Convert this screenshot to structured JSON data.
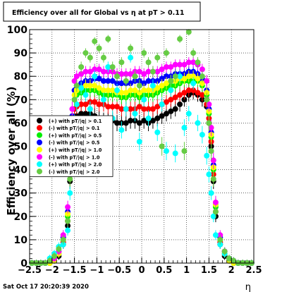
{
  "canvas": {
    "title": "Efficiency over all for Global vs   η at pT > 0.11",
    "timestamp": "Sat Oct 17 20:20:39 2020"
  },
  "chart_data": {
    "type": "scatter",
    "title": "Efficiency over all for Global vs   η at pT > 0.11",
    "xlabel": "η",
    "ylabel": "Efficiency over all (%)",
    "xlim": [
      -2.5,
      2.5
    ],
    "ylim": [
      0,
      100
    ],
    "x_ticks": [
      -2.5,
      -2,
      -1.5,
      -1,
      -0.5,
      0,
      0.5,
      1,
      1.5,
      2,
      2.5
    ],
    "x_tick_labels": [
      "−2.5",
      "−2",
      "−1.5",
      "−1",
      "−0.5",
      "0",
      "0.5",
      "1",
      "1.5",
      "2",
      "2.5"
    ],
    "y_ticks": [
      0,
      10,
      20,
      30,
      40,
      50,
      60,
      70,
      80,
      90,
      100
    ],
    "grid": true,
    "legend_position": "left-middle",
    "x": [
      -2.45,
      -2.35,
      -2.25,
      -2.15,
      -2.05,
      -1.95,
      -1.85,
      -1.75,
      -1.65,
      -1.6,
      -1.55,
      -1.5,
      -1.45,
      -1.35,
      -1.25,
      -1.15,
      -1.05,
      -0.95,
      -0.85,
      -0.75,
      -0.65,
      -0.55,
      -0.45,
      -0.35,
      -0.25,
      -0.15,
      -0.05,
      0.05,
      0.15,
      0.25,
      0.35,
      0.45,
      0.55,
      0.65,
      0.75,
      0.85,
      0.95,
      1.05,
      1.15,
      1.25,
      1.35,
      1.45,
      1.5,
      1.55,
      1.6,
      1.65,
      1.75,
      1.85,
      1.95,
      2.05,
      2.15,
      2.25,
      2.35,
      2.45
    ],
    "series": [
      {
        "name": "(+) with pT/|q| > 0.1",
        "color": "#000000",
        "values": [
          0,
          0,
          0,
          0,
          0,
          1,
          3,
          8,
          16,
          35,
          55,
          62,
          63,
          64,
          64,
          64,
          63,
          62,
          61,
          61,
          61,
          60,
          60,
          60,
          61,
          61,
          60,
          61,
          60,
          61,
          62,
          63,
          64,
          65,
          66,
          68,
          70,
          72,
          73,
          72,
          70,
          67,
          60,
          50,
          35,
          20,
          8,
          3,
          1,
          0,
          0,
          0,
          0,
          0
        ]
      },
      {
        "name": "(-) with pT/|q| > 0.1",
        "color": "#ff0000",
        "values": [
          0,
          0,
          0,
          0,
          1,
          2,
          4,
          9,
          18,
          38,
          58,
          66,
          67,
          68,
          68,
          69,
          69,
          68,
          68,
          67,
          67,
          67,
          66,
          66,
          66,
          66,
          67,
          66,
          66,
          66,
          67,
          68,
          69,
          70,
          71,
          72,
          73,
          74,
          74,
          73,
          72,
          68,
          62,
          52,
          38,
          22,
          9,
          4,
          1,
          1,
          0,
          0,
          0,
          0
        ]
      },
      {
        "name": "(+) with pT/|q| > 0.5",
        "color": "#00ee00",
        "values": [
          0,
          0,
          0,
          0,
          0,
          1,
          4,
          10,
          20,
          40,
          60,
          70,
          72,
          73,
          74,
          74,
          74,
          73,
          72,
          72,
          72,
          72,
          71,
          71,
          72,
          72,
          71,
          72,
          72,
          72,
          73,
          74,
          75,
          76,
          76,
          77,
          78,
          78,
          79,
          78,
          76,
          72,
          64,
          54,
          40,
          24,
          10,
          4,
          1,
          0,
          0,
          0,
          0,
          0
        ]
      },
      {
        "name": "(-) with pT/|q| > 0.5",
        "color": "#0000ff",
        "values": [
          0,
          0,
          0,
          0,
          1,
          2,
          5,
          11,
          22,
          42,
          63,
          74,
          76,
          77,
          78,
          78,
          79,
          79,
          78,
          78,
          78,
          77,
          77,
          77,
          77,
          78,
          78,
          77,
          78,
          78,
          78,
          79,
          80,
          80,
          81,
          81,
          81,
          82,
          82,
          81,
          79,
          74,
          66,
          56,
          42,
          25,
          11,
          5,
          2,
          1,
          0,
          0,
          0,
          0
        ]
      },
      {
        "name": "(+) with pT/|q| > 1.0",
        "color": "#ffff00",
        "values": [
          0,
          0,
          0,
          0,
          0,
          1,
          4,
          10,
          21,
          41,
          62,
          72,
          74,
          75,
          76,
          76,
          76,
          75,
          74,
          74,
          74,
          73,
          73,
          73,
          74,
          74,
          73,
          74,
          74,
          74,
          75,
          76,
          77,
          78,
          78,
          79,
          79,
          80,
          80,
          79,
          77,
          73,
          65,
          55,
          41,
          25,
          10,
          4,
          1,
          0,
          0,
          0,
          0,
          0
        ]
      },
      {
        "name": "(-) with pT/|q| > 1.0",
        "color": "#ff00ff",
        "values": [
          0,
          0,
          0,
          0,
          1,
          2,
          5,
          12,
          24,
          44,
          66,
          78,
          80,
          81,
          82,
          82,
          83,
          83,
          82,
          82,
          82,
          81,
          81,
          81,
          81,
          82,
          82,
          81,
          82,
          82,
          82,
          83,
          84,
          84,
          85,
          85,
          85,
          86,
          86,
          85,
          83,
          78,
          68,
          58,
          44,
          26,
          12,
          5,
          2,
          1,
          0,
          0,
          0,
          0
        ]
      },
      {
        "name": "(+) with pT/|q| > 2.0",
        "color": "#00ffff",
        "values": [
          0,
          0,
          0,
          0,
          2,
          4,
          7,
          8,
          14,
          30,
          48,
          60,
          68,
          75,
          72,
          66,
          80,
          58,
          70,
          84,
          62,
          74,
          57,
          66,
          88,
          64,
          52,
          70,
          62,
          76,
          56,
          68,
          48,
          74,
          47,
          80,
          58,
          64,
          77,
          60,
          55,
          46,
          38,
          30,
          20,
          12,
          8,
          4,
          2,
          1,
          0,
          0,
          0,
          0
        ]
      },
      {
        "name": "(-) with pT/|q| > 2.0",
        "color": "#66cc44",
        "values": [
          0,
          0,
          0,
          0,
          1,
          3,
          6,
          10,
          18,
          36,
          56,
          70,
          76,
          84,
          90,
          88,
          95,
          92,
          88,
          96,
          84,
          80,
          86,
          78,
          92,
          80,
          76,
          90,
          86,
          82,
          88,
          50,
          90,
          78,
          80,
          96,
          48,
          99,
          90,
          86,
          80,
          70,
          60,
          48,
          36,
          22,
          10,
          5,
          2,
          1,
          0,
          0,
          0,
          0
        ]
      }
    ]
  }
}
